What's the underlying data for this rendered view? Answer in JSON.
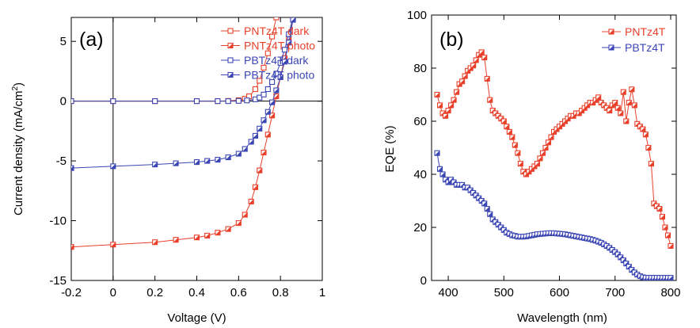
{
  "colors": {
    "red": "#e8402a",
    "blue": "#3b46b4",
    "axis": "#000000"
  },
  "chart_data": [
    {
      "type": "line",
      "panel_label": "(a)",
      "xlabel": "Voltage (V)",
      "ylabel_main": "Current density (mA/cm",
      "ylabel_sup": "2",
      "ylabel_close": ")",
      "xlim": [
        -0.2,
        1.0
      ],
      "ylim": [
        -15,
        7
      ],
      "xticks": [
        -0.2,
        0,
        0.2,
        0.4,
        0.6,
        0.8,
        1
      ],
      "xtick_labels": [
        "-0.2",
        "0",
        "0.2",
        "0.4",
        "0.6",
        "0.8",
        "1"
      ],
      "yticks": [
        -15,
        -10,
        -5,
        0,
        5
      ],
      "ytick_labels": [
        "-15",
        "-10",
        "-5",
        "0",
        "5"
      ],
      "reference_lines": {
        "x": 0,
        "y": 0
      },
      "legend_position": "top-right",
      "series": [
        {
          "name": "PNTz4T dark",
          "color": "#e8402a",
          "marker": "open-square",
          "x": [
            -0.2,
            0,
            0.2,
            0.4,
            0.5,
            0.55,
            0.6,
            0.63,
            0.65,
            0.68,
            0.7,
            0.72,
            0.74,
            0.76,
            0.78
          ],
          "y": [
            0,
            0,
            0,
            0,
            0,
            0.02,
            0.08,
            0.2,
            0.4,
            1.0,
            1.7,
            2.8,
            4.0,
            5.4,
            7.0
          ]
        },
        {
          "name": "PNTz4T photo",
          "color": "#e8402a",
          "marker": "half-filled-square",
          "x": [
            -0.2,
            0,
            0.2,
            0.3,
            0.4,
            0.45,
            0.5,
            0.55,
            0.6,
            0.63,
            0.66,
            0.68,
            0.7,
            0.72,
            0.74,
            0.76,
            0.78,
            0.8,
            0.82,
            0.84,
            0.86
          ],
          "y": [
            -12.2,
            -12.0,
            -11.8,
            -11.6,
            -11.4,
            -11.25,
            -11.0,
            -10.7,
            -10.2,
            -9.5,
            -8.4,
            -7.2,
            -5.8,
            -4.3,
            -2.8,
            -1.2,
            0.4,
            2.0,
            3.6,
            5.2,
            7.0
          ]
        },
        {
          "name": "PBTz4T dark",
          "color": "#3b46b4",
          "marker": "open-square",
          "x": [
            -0.2,
            0,
            0.2,
            0.4,
            0.5,
            0.55,
            0.6,
            0.64,
            0.68,
            0.7,
            0.72,
            0.74,
            0.76,
            0.78,
            0.8,
            0.82,
            0.84,
            0.86
          ],
          "y": [
            0,
            0,
            0,
            0,
            0,
            0,
            0.02,
            0.06,
            0.15,
            0.3,
            0.55,
            1.0,
            1.6,
            2.3,
            3.2,
            4.3,
            5.6,
            7.0
          ]
        },
        {
          "name": "PBTz4T photo",
          "color": "#3b46b4",
          "marker": "half-filled-square",
          "x": [
            -0.2,
            0,
            0.2,
            0.3,
            0.4,
            0.45,
            0.5,
            0.55,
            0.6,
            0.63,
            0.66,
            0.68,
            0.7,
            0.72,
            0.74,
            0.76,
            0.78,
            0.8,
            0.82,
            0.84,
            0.86
          ],
          "y": [
            -5.6,
            -5.45,
            -5.3,
            -5.2,
            -5.1,
            -5.0,
            -4.9,
            -4.7,
            -4.4,
            -4.0,
            -3.4,
            -2.9,
            -2.3,
            -1.6,
            -0.9,
            -0.1,
            0.9,
            2.0,
            3.3,
            4.9,
            6.8
          ]
        }
      ]
    },
    {
      "type": "line",
      "panel_label": "(b)",
      "xlabel": "Wavelength (nm)",
      "ylabel": "EQE (%)",
      "xlim": [
        370,
        810
      ],
      "ylim": [
        0,
        100
      ],
      "xticks": [
        400,
        500,
        600,
        700,
        800
      ],
      "xtick_labels": [
        "400",
        "500",
        "600",
        "700",
        "800"
      ],
      "yticks": [
        0,
        20,
        40,
        60,
        80,
        100
      ],
      "ytick_labels": [
        "0",
        "20",
        "40",
        "60",
        "80",
        "100"
      ],
      "legend_position": "top-right",
      "series": [
        {
          "name": "PNTz4T",
          "color": "#e8402a",
          "marker": "half-filled-square",
          "x": [
            380,
            385,
            390,
            395,
            400,
            405,
            410,
            415,
            420,
            425,
            430,
            435,
            440,
            445,
            450,
            455,
            460,
            465,
            470,
            475,
            480,
            485,
            490,
            495,
            500,
            505,
            510,
            515,
            520,
            525,
            530,
            535,
            540,
            545,
            550,
            555,
            560,
            565,
            570,
            575,
            580,
            585,
            590,
            595,
            600,
            605,
            610,
            615,
            620,
            625,
            630,
            635,
            640,
            645,
            650,
            655,
            660,
            665,
            670,
            675,
            680,
            685,
            690,
            695,
            700,
            705,
            710,
            715,
            720,
            725,
            730,
            735,
            740,
            745,
            750,
            755,
            760,
            765,
            770,
            775,
            780,
            785,
            790,
            795,
            800
          ],
          "y": [
            70,
            66,
            63,
            62,
            64,
            66,
            68,
            71,
            74,
            75,
            77,
            79,
            80,
            81,
            83,
            85,
            86,
            84,
            76,
            68,
            64,
            63,
            62,
            61,
            60,
            58,
            56,
            54,
            51,
            48,
            44,
            41,
            40,
            41,
            42,
            43,
            44,
            46,
            48,
            50,
            52,
            54,
            56,
            57,
            58,
            59,
            60,
            61,
            62,
            62,
            63,
            63,
            64,
            65,
            66,
            67,
            67,
            68,
            69,
            67,
            66,
            65,
            64,
            66,
            67,
            65,
            63,
            71,
            60,
            67,
            72,
            66,
            59,
            58,
            57,
            55,
            50,
            44,
            29,
            28,
            27,
            24,
            20,
            17,
            13
          ]
        },
        {
          "name": "PBTz4T",
          "color": "#3b46b4",
          "marker": "half-filled-square",
          "x": [
            380,
            385,
            390,
            395,
            400,
            405,
            410,
            415,
            420,
            425,
            430,
            435,
            440,
            445,
            450,
            455,
            460,
            465,
            470,
            475,
            480,
            485,
            490,
            495,
            500,
            505,
            510,
            515,
            520,
            525,
            530,
            535,
            540,
            545,
            550,
            555,
            560,
            565,
            570,
            575,
            580,
            585,
            590,
            595,
            600,
            605,
            610,
            615,
            620,
            625,
            630,
            635,
            640,
            645,
            650,
            655,
            660,
            665,
            670,
            675,
            680,
            685,
            690,
            695,
            700,
            705,
            710,
            715,
            720,
            725,
            730,
            735,
            740,
            745,
            750,
            755,
            760,
            765,
            770,
            775,
            780,
            785,
            790,
            795,
            800
          ],
          "y": [
            48,
            42,
            40,
            38,
            37,
            38,
            37,
            36,
            36,
            36,
            35,
            35,
            34,
            33,
            32,
            31,
            30,
            29,
            27,
            25,
            23,
            22,
            21,
            20,
            19,
            18,
            17.5,
            17,
            16.8,
            16.5,
            16.5,
            16.5,
            16.6,
            16.8,
            17,
            17.2,
            17.4,
            17.5,
            17.6,
            17.7,
            17.8,
            17.8,
            17.8,
            17.7,
            17.6,
            17.5,
            17.4,
            17.2,
            17,
            16.8,
            16.6,
            16.4,
            16.2,
            16,
            15.8,
            15.6,
            15.3,
            15,
            14.6,
            14.2,
            13.6,
            13,
            12.3,
            11.5,
            10.7,
            9.8,
            8.7,
            7.6,
            6.4,
            5.2,
            4,
            3,
            2.2,
            1.6,
            1.2,
            1,
            1,
            1,
            1,
            1,
            1,
            1,
            1,
            1,
            1
          ]
        }
      ]
    }
  ]
}
